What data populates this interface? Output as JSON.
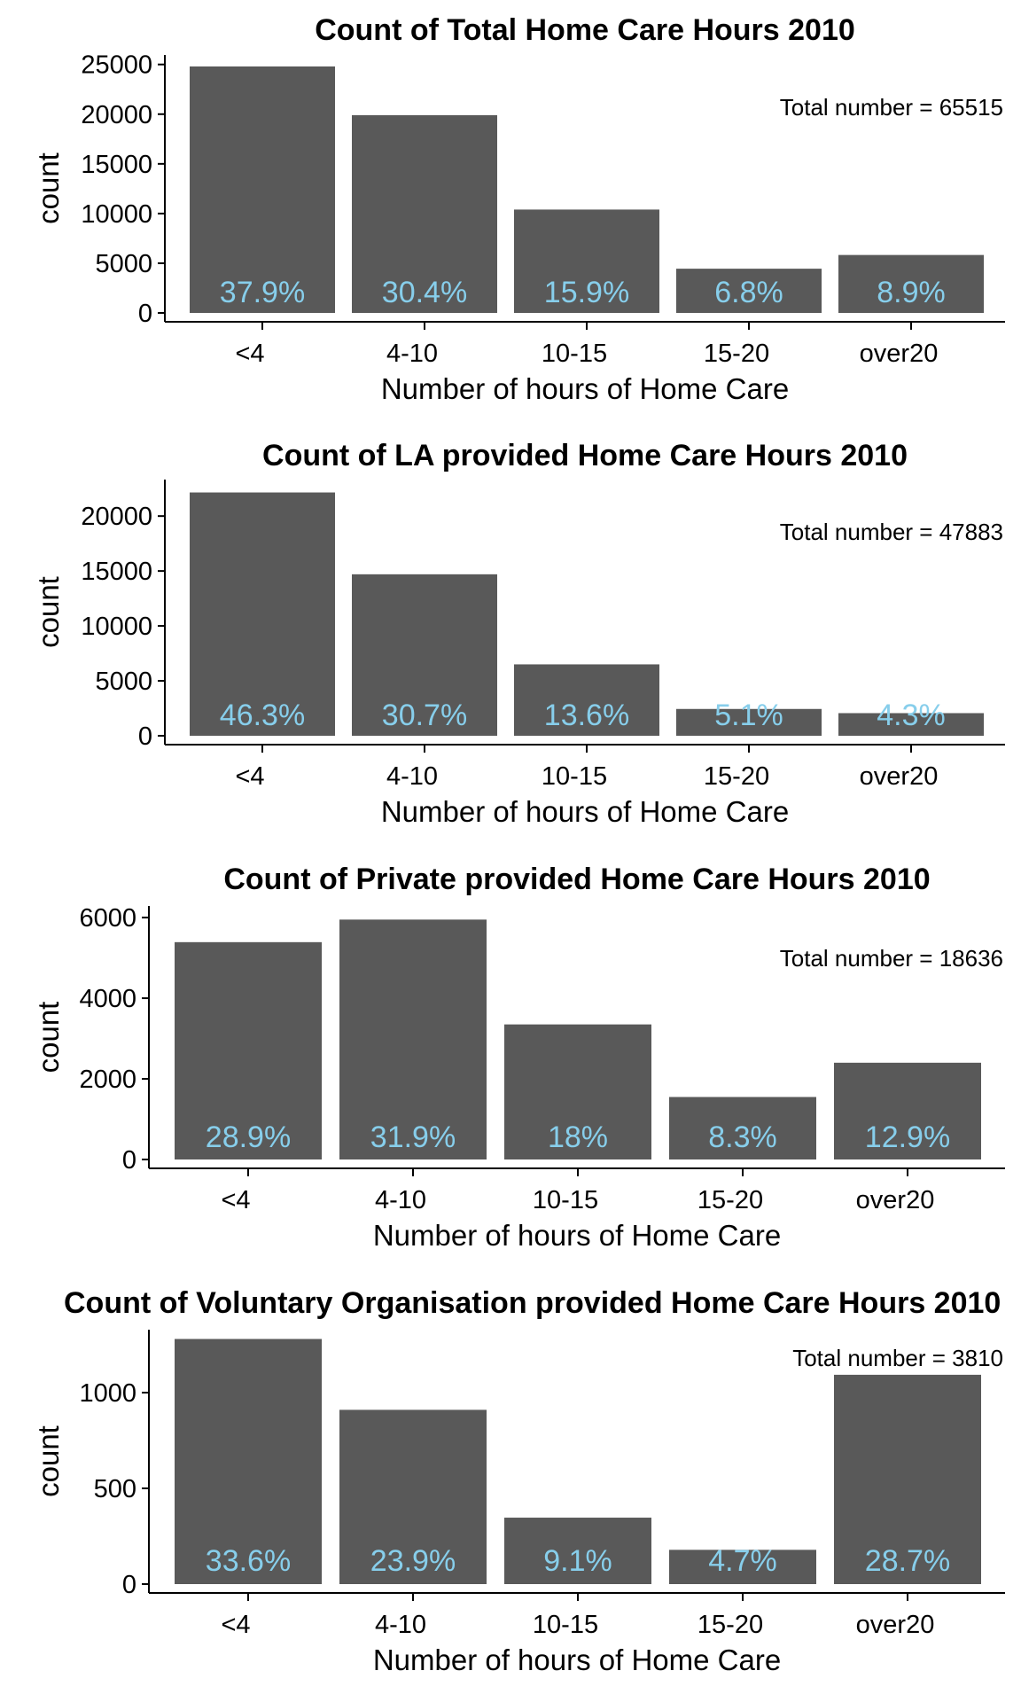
{
  "chart_data": [
    {
      "type": "bar",
      "title": "Count of Total Home Care Hours 2010",
      "xlabel": "Number of hours of Home Care",
      "ylabel": "count",
      "categories": [
        "<4",
        "4-10",
        "10-15",
        "15-20",
        "over20"
      ],
      "values": [
        24800,
        19900,
        10400,
        4450,
        5830
      ],
      "data_labels": [
        "37.9%",
        "30.4%",
        "15.9%",
        "6.8%",
        "8.9%"
      ],
      "annotation": "Total number = 65515",
      "ylim": [
        0,
        25600
      ],
      "yticks": [
        0,
        5000,
        10000,
        15000,
        20000,
        25000
      ],
      "grid": false,
      "bar_color": "#595959",
      "label_color": "#87ceeb"
    },
    {
      "type": "bar",
      "title": "Count of LA provided Home Care Hours 2010",
      "xlabel": "Number of hours of Home Care",
      "ylabel": "count",
      "categories": [
        "<4",
        "4-10",
        "10-15",
        "15-20",
        "over20"
      ],
      "values": [
        22150,
        14700,
        6500,
        2440,
        2060
      ],
      "data_labels": [
        "46.3%",
        "30.7%",
        "13.6%",
        "5.1%",
        "4.3%"
      ],
      "annotation": "Total number = 47883",
      "ylim": [
        0,
        23000
      ],
      "yticks": [
        0,
        5000,
        10000,
        15000,
        20000
      ],
      "grid": false,
      "bar_color": "#595959",
      "label_color": "#87ceeb"
    },
    {
      "type": "bar",
      "title": "Count of Private provided Home Care Hours 2010",
      "xlabel": "Number of hours of Home Care",
      "ylabel": "count",
      "categories": [
        "<4",
        "4-10",
        "10-15",
        "15-20",
        "over20"
      ],
      "values": [
        5390,
        5950,
        3350,
        1550,
        2400
      ],
      "data_labels": [
        "28.9%",
        "31.9%",
        "18%",
        "8.3%",
        "12.9%"
      ],
      "annotation": "Total number = 18636",
      "ylim": [
        0,
        6200
      ],
      "yticks": [
        0,
        2000,
        4000,
        6000
      ],
      "grid": false,
      "bar_color": "#595959",
      "label_color": "#87ceeb"
    },
    {
      "type": "bar",
      "title": "Count of Voluntary Organisation provided Home Care Hours 2010",
      "xlabel": "Number of hours of Home Care",
      "ylabel": "count",
      "categories": [
        "<4",
        "4-10",
        "10-15",
        "15-20",
        "over20"
      ],
      "values": [
        1280,
        910,
        347,
        179,
        1093
      ],
      "data_labels": [
        "33.6%",
        "23.9%",
        "9.1%",
        "4.7%",
        "28.7%"
      ],
      "annotation": "Total number = 3810",
      "ylim": [
        0,
        1310
      ],
      "yticks": [
        0,
        500,
        1000
      ],
      "grid": false,
      "bar_color": "#595959",
      "label_color": "#87ceeb"
    }
  ]
}
